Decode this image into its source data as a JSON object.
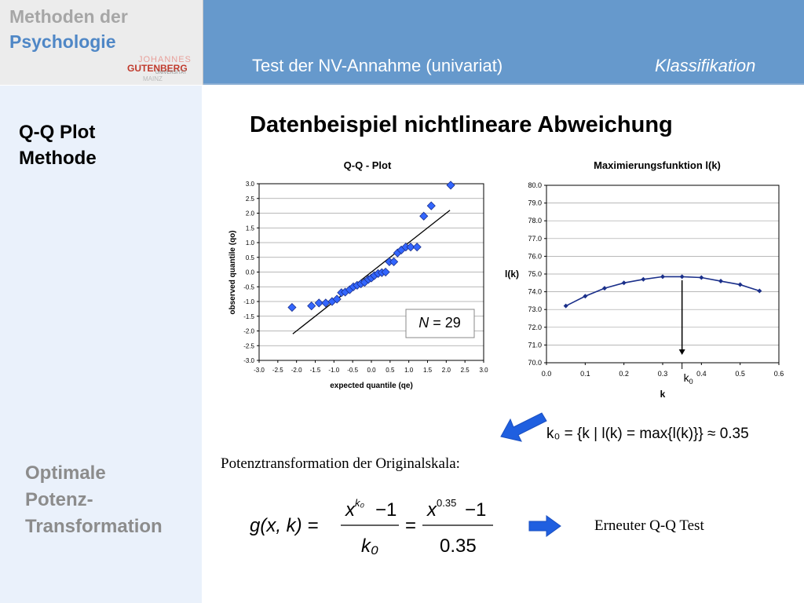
{
  "logo": {
    "line1": "Methoden der",
    "line2": "Psychologie",
    "uni_top": "JOHANNES",
    "uni_name": "GUTENBERG",
    "uni_sub": "UNIVERSITÄT",
    "uni_city": "MAINZ"
  },
  "header": {
    "title": "Test der NV-Annahme (univariat)",
    "right": "Klassifikation"
  },
  "sidebar": {
    "section1_line1": "Q-Q Plot",
    "section1_line2": "Methode",
    "section2_line1": "Optimale",
    "section2_line2": "Potenz-",
    "section2_line3": "Transformation"
  },
  "main": {
    "title": "Datenbeispiel nichtlineare Abweichung",
    "n_label_n": "N",
    "n_label_val": "= 29",
    "k0_marker": "k",
    "k0_sub": "0",
    "formula_k0": "k₀ = {k | l(k) = max{l(k)}} ≈ 0.35",
    "potenz_text": "Potenztransformation der Originalskala:",
    "erneuter_text": "Erneuter Q-Q Test",
    "formula_g": {
      "lhs": "g(x, k) =",
      "num1_base": "x",
      "num1_exp": "k₀",
      "minus1": "−1",
      "den1": "k₀",
      "eq": "=",
      "num2_base": "x",
      "num2_exp": "0.35",
      "minus2": "−1",
      "den2": "0.35"
    }
  },
  "colors": {
    "header_blue": "#6699cc",
    "sidebar_bg": "#eaf1fb",
    "marker_blue": "#3366ff",
    "arrow_blue": "#1f5fe0"
  },
  "chart_data": [
    {
      "type": "scatter",
      "title": "Q-Q - Plot",
      "xlabel": "expected quantile (qe)",
      "ylabel": "observed quantile (qo)",
      "xlim": [
        -3.0,
        3.0
      ],
      "ylim": [
        -3.0,
        3.0
      ],
      "xticks": [
        "-3.0",
        "-2.5",
        "-2.0",
        "-1.5",
        "-1.0",
        "-0.5",
        "0.0",
        "0.5",
        "1.0",
        "1.5",
        "2.0",
        "2.5",
        "3.0"
      ],
      "yticks": [
        "3.0",
        "2.5",
        "2.0",
        "1.5",
        "1.0",
        "0.5",
        "0.0",
        "-0.5",
        "-1.0",
        "-1.5",
        "-2.0",
        "-2.5",
        "-3.0"
      ],
      "grid": "horizontal",
      "points": [
        {
          "x": -2.12,
          "y": -1.2
        },
        {
          "x": -1.6,
          "y": -1.15
        },
        {
          "x": -1.4,
          "y": -1.05
        },
        {
          "x": -1.22,
          "y": -1.05
        },
        {
          "x": -1.05,
          "y": -1.0
        },
        {
          "x": -0.92,
          "y": -0.92
        },
        {
          "x": -0.8,
          "y": -0.7
        },
        {
          "x": -0.7,
          "y": -0.68
        },
        {
          "x": -0.58,
          "y": -0.6
        },
        {
          "x": -0.48,
          "y": -0.5
        },
        {
          "x": -0.38,
          "y": -0.45
        },
        {
          "x": -0.28,
          "y": -0.4
        },
        {
          "x": -0.18,
          "y": -0.35
        },
        {
          "x": -0.08,
          "y": -0.25
        },
        {
          "x": 0.0,
          "y": -0.2
        },
        {
          "x": 0.08,
          "y": -0.12
        },
        {
          "x": 0.18,
          "y": -0.05
        },
        {
          "x": 0.28,
          "y": -0.02
        },
        {
          "x": 0.38,
          "y": 0.0
        },
        {
          "x": 0.48,
          "y": 0.35
        },
        {
          "x": 0.6,
          "y": 0.35
        },
        {
          "x": 0.7,
          "y": 0.65
        },
        {
          "x": 0.8,
          "y": 0.75
        },
        {
          "x": 0.92,
          "y": 0.85
        },
        {
          "x": 1.05,
          "y": 0.85
        },
        {
          "x": 1.22,
          "y": 0.85
        },
        {
          "x": 1.4,
          "y": 1.9
        },
        {
          "x": 1.6,
          "y": 2.25
        },
        {
          "x": 2.12,
          "y": 2.95
        }
      ],
      "reference_line": {
        "x": [
          -2.1,
          2.1
        ],
        "y": [
          -2.1,
          2.1
        ]
      }
    },
    {
      "type": "line",
      "title": "Maximierungsfunktion l(k)",
      "xlabel": "k",
      "ylabel": "l(k)",
      "xlim": [
        0.0,
        0.6
      ],
      "ylim": [
        70.0,
        80.0
      ],
      "xticks": [
        "0.0",
        "0.1",
        "0.2",
        "0.3",
        "0.4",
        "0.5",
        "0.6"
      ],
      "yticks": [
        "80.0",
        "79.0",
        "78.0",
        "77.0",
        "76.0",
        "75.0",
        "74.0",
        "73.0",
        "72.0",
        "71.0",
        "70.0"
      ],
      "grid": "horizontal",
      "series": [
        {
          "x": [
            0.05,
            0.1,
            0.15,
            0.2,
            0.25,
            0.3,
            0.35,
            0.4,
            0.45,
            0.5,
            0.55
          ],
          "y": [
            73.2,
            73.75,
            74.2,
            74.5,
            74.7,
            74.85,
            74.85,
            74.8,
            74.6,
            74.4,
            74.05
          ]
        }
      ],
      "annotation": {
        "label": "k0",
        "x": 0.35
      }
    }
  ]
}
